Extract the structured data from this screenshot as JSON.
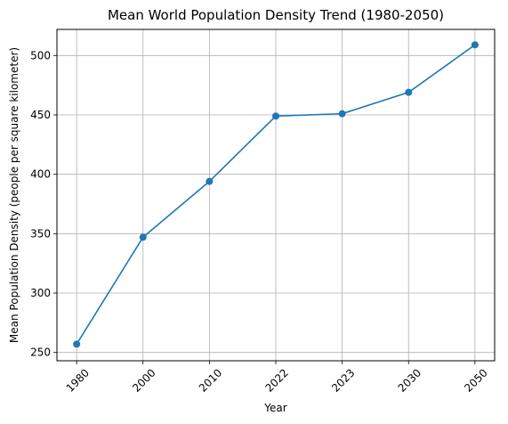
{
  "chart_data": {
    "type": "line",
    "title": "Mean World Population Density Trend (1980-2050)",
    "xlabel": "Year",
    "ylabel": "Mean Population Density (people per square kilometer)",
    "categories": [
      "1980",
      "2000",
      "2010",
      "2022",
      "2023",
      "2030",
      "2050"
    ],
    "series": [
      {
        "values": [
          257,
          347,
          394,
          449,
          451,
          469,
          509
        ]
      }
    ],
    "yticks": [
      250,
      300,
      350,
      400,
      450,
      500
    ],
    "ylim": [
      243,
      522
    ],
    "grid": true,
    "marker": "circle",
    "x_tick_rotation": 45,
    "colors": {
      "line": "#1f77b4",
      "grid": "#b0b0b0",
      "axes": "#000000"
    }
  }
}
